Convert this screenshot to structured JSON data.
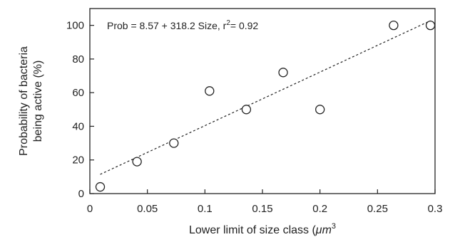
{
  "chart_data": {
    "type": "scatter",
    "xlabel": "Lower limit of size class (",
    "xlabel_unit": "μm",
    "xlabel_exp": "3",
    "ylabel_line1": "Probability of bacteria",
    "ylabel_line2": "being active (%)",
    "xlim": [
      0,
      0.3
    ],
    "ylim": [
      0,
      110
    ],
    "x_ticks": [
      0,
      0.05,
      0.1,
      0.15,
      0.2,
      0.25,
      0.3
    ],
    "x_tick_labels": [
      "0",
      "0.05",
      "0.1",
      "0.15",
      "0.2",
      "0.25",
      "0.3"
    ],
    "y_ticks": [
      0,
      20,
      40,
      60,
      80,
      100
    ],
    "y_tick_labels": [
      "0",
      "20",
      "40",
      "60",
      "80",
      "100"
    ],
    "points": [
      {
        "x": 0.009,
        "y": 4
      },
      {
        "x": 0.041,
        "y": 19
      },
      {
        "x": 0.073,
        "y": 30
      },
      {
        "x": 0.104,
        "y": 61
      },
      {
        "x": 0.136,
        "y": 50
      },
      {
        "x": 0.168,
        "y": 72
      },
      {
        "x": 0.2,
        "y": 50
      },
      {
        "x": 0.264,
        "y": 100
      },
      {
        "x": 0.296,
        "y": 100
      }
    ],
    "regression": {
      "intercept": 8.57,
      "slope": 318.2,
      "x_start": 0.009,
      "x_end": 0.296
    },
    "annotation": {
      "text": "Prob = 8.57 + 318.2 Size,  r",
      "exp": "2",
      "tail": "= 0.92"
    },
    "grid": false
  }
}
